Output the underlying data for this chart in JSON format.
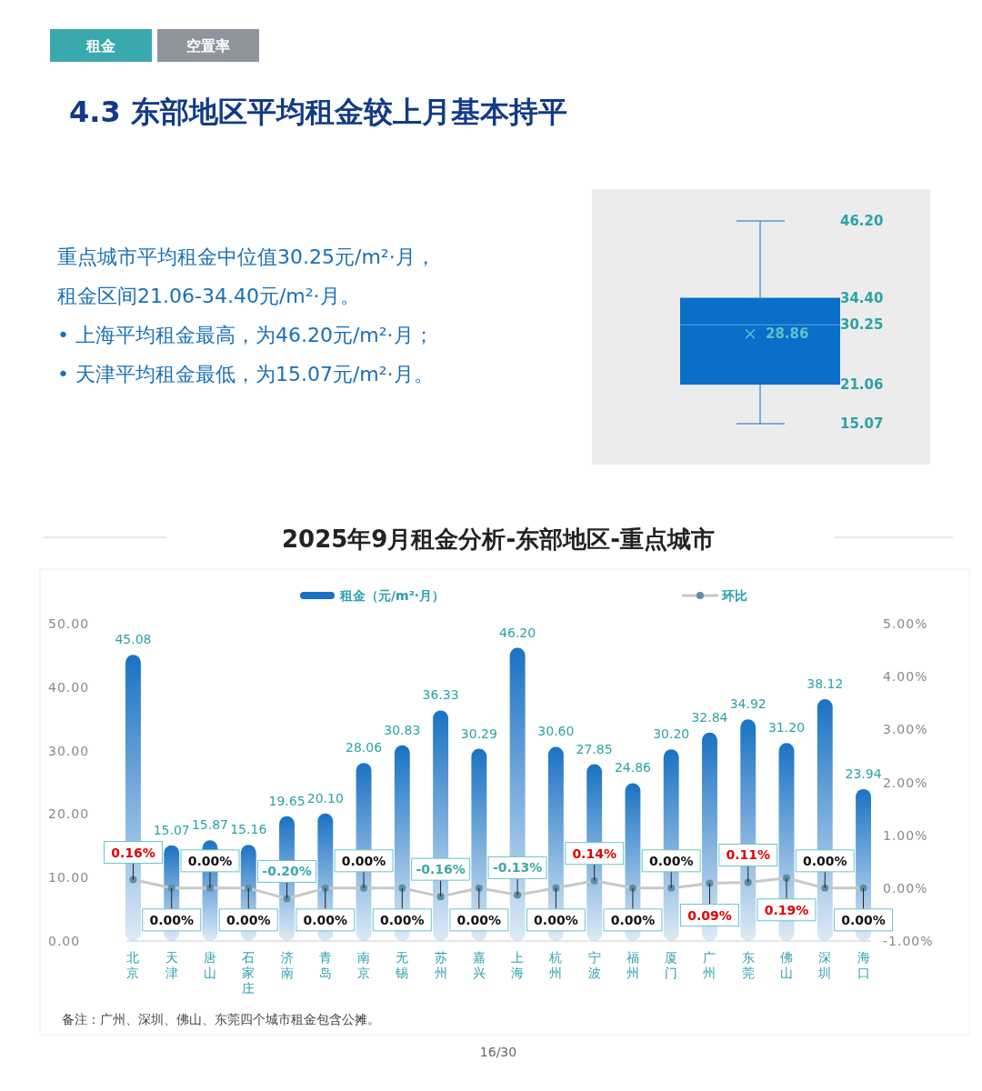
{
  "chart_data": [
    {
      "type": "other",
      "title": "4.3 东部地区平均租金较上月基本持平",
      "annotations": [
        "租金",
        "空置率",
        "重点城市平均租金中位值30.25元/m²·月，",
        "租金区间21.06-34.40元/m²·月。",
        "• 上海平均租金最高，为46.20元/m²·月；",
        "• 天津平均租金最低，为15.07元/m²·月。"
      ]
    },
    {
      "type": "box",
      "categories": [
        null
      ],
      "color": "#0a6fc9",
      "ylim": [
        15.07,
        46.2
      ],
      "data_labels": true,
      "annotations": [
        "28.86"
      ],
      "yticks": [
        {
          "value": 15.07,
          "label": "15.07"
        },
        {
          "value": 21.06,
          "label": "21.06"
        },
        {
          "value": 30.25,
          "label": "30.25"
        },
        {
          "value": 34.4,
          "label": "34.40"
        },
        {
          "value": 46.2,
          "label": "46.20"
        }
      ],
      "boxes": [
        {
          "low": 15.07,
          "q1": 21.06,
          "median": 30.25,
          "q3": 34.4,
          "high": 46.2,
          "mean": 28.86
        }
      ]
    },
    {
      "type": "bar",
      "title": "2025年9月租金分析-东部地区-重点城市",
      "categories": [
        "北京",
        "天津",
        "唐山",
        "石家庄",
        "济南",
        "青岛",
        "南京",
        "无锡",
        "苏州",
        "嘉兴",
        "上海",
        "杭州",
        "宁波",
        "福州",
        "厦门",
        "广州",
        "东莞",
        "佛山",
        "深圳",
        "海口"
      ],
      "series": [
        {
          "name": "租金（元/m²·月）",
          "type": "bar",
          "color": "#1a72c4",
          "values": [
            45.08,
            15.07,
            15.87,
            15.16,
            19.65,
            20.1,
            28.06,
            30.83,
            36.33,
            30.29,
            46.2,
            30.6,
            27.85,
            24.86,
            30.2,
            32.84,
            34.92,
            31.2,
            38.12,
            23.94
          ],
          "value_labels": [
            "45.08",
            "15.07",
            "15.87",
            "15.16",
            "19.65",
            "20.10",
            "28.06",
            "30.83",
            "36.33",
            "30.29",
            "46.20",
            "30.60",
            "27.85",
            "24.86",
            "30.20",
            "32.84",
            "34.92",
            "31.20",
            "38.12",
            "23.94"
          ]
        },
        {
          "name": "环比",
          "type": "line",
          "axis": "y2",
          "color": "#c8c8c8",
          "marker": "circle",
          "values": [
            0.16,
            0,
            0,
            0,
            -0.2,
            0,
            0,
            0,
            -0.16,
            0,
            -0.13,
            0,
            0.14,
            0,
            0,
            0.09,
            0.11,
            0.19,
            0,
            0
          ],
          "value_labels": [
            "0.16%",
            "0.00%",
            "0.00%",
            "0.00%",
            "-0.20%",
            "0.00%",
            "0.00%",
            "0.00%",
            "-0.16%",
            "0.00%",
            "-0.13%",
            "0.00%",
            "0.14%",
            "0.00%",
            "0.00%",
            "0.09%",
            "0.11%",
            "0.19%",
            "0.00%",
            "0.00%"
          ]
        }
      ],
      "ylim": [
        0,
        50
      ],
      "yticks": [
        {
          "value": 0,
          "label": "0.00"
        },
        {
          "value": 10,
          "label": "10.00"
        },
        {
          "value": 20,
          "label": "20.00"
        },
        {
          "value": 30,
          "label": "30.00"
        },
        {
          "value": 40,
          "label": "40.00"
        },
        {
          "value": 50,
          "label": "50.00"
        }
      ],
      "y2lim": [
        -1,
        5
      ],
      "y2ticks": [
        {
          "value": -1,
          "label": "-1.00%"
        },
        {
          "value": 0,
          "label": "0.00%"
        },
        {
          "value": 1,
          "label": "1.00%"
        },
        {
          "value": 2,
          "label": "2.00%"
        },
        {
          "value": 3,
          "label": "3.00%"
        },
        {
          "value": 4,
          "label": "4.00%"
        },
        {
          "value": 5,
          "label": "5.00%"
        }
      ],
      "grid": false,
      "legend": "top",
      "annotations": [
        "备注：广州、深圳、佛山、东莞四个城市租金包含公摊。",
        "16/30"
      ]
    }
  ]
}
